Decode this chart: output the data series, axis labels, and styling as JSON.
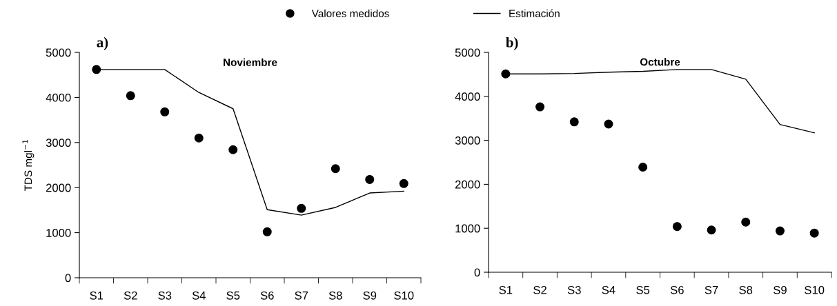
{
  "chart_data": [
    {
      "type": "scatter",
      "title": "Noviembre",
      "ylabel": "TDS mgl$^{−1}$",
      "annotations": [
        "a)"
      ],
      "legend": "top",
      "categories": [
        "S1",
        "S2",
        "S3",
        "S4",
        "S5",
        "S6",
        "S7",
        "S8",
        "S9",
        "S10"
      ],
      "ylim": [
        0,
        5000
      ],
      "yticks": [
        0,
        1000,
        2000,
        3000,
        4000,
        5000
      ],
      "grid": false,
      "series": [
        {
          "name": "Valores medidos",
          "marker": "circle",
          "color": "#000000",
          "values": [
            4620,
            4040,
            3680,
            3100,
            2840,
            1020,
            1540,
            2420,
            2180,
            2090
          ]
        },
        {
          "name": "Estimación",
          "type": "line",
          "marker": "none",
          "color": "#000000",
          "values": [
            4620,
            4620,
            4620,
            4110,
            3750,
            1510,
            1390,
            1560,
            1880,
            1920
          ]
        }
      ]
    },
    {
      "type": "scatter",
      "title": "Octubre",
      "annotations": [
        "b)"
      ],
      "categories": [
        "S1",
        "S2",
        "S3",
        "S4",
        "S5",
        "S6",
        "S7",
        "S8",
        "S9",
        "S10"
      ],
      "ylim": [
        0,
        5000
      ],
      "yticks": [
        0,
        1000,
        2000,
        3000,
        4000,
        5000
      ],
      "grid": false,
      "series": [
        {
          "marker": "circle",
          "color": "#000000",
          "values": [
            4510,
            3760,
            3420,
            3370,
            2390,
            1040,
            960,
            1140,
            940,
            890
          ]
        },
        {
          "type": "line",
          "marker": "none",
          "color": "#000000",
          "values": [
            4510,
            4510,
            4520,
            4550,
            4570,
            4610,
            4610,
            4390,
            3360,
            3170
          ]
        }
      ]
    }
  ]
}
